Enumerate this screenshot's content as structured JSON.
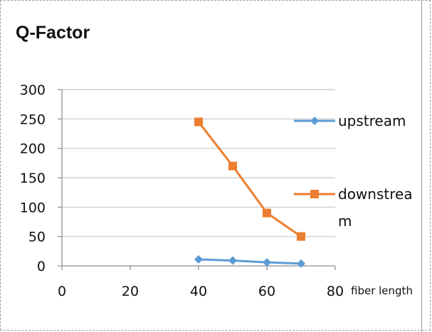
{
  "chart_data": {
    "type": "line",
    "title": "Q-Factor",
    "xlabel": "fiber length",
    "ylabel": "",
    "xlim": [
      0,
      80
    ],
    "ylim": [
      0,
      300
    ],
    "x_ticks": [
      "0",
      "20",
      "40",
      "60",
      "80"
    ],
    "y_ticks": [
      "0",
      "50",
      "100",
      "150",
      "200",
      "250",
      "300"
    ],
    "grid": true,
    "legend": "right",
    "series": [
      {
        "name": "upstream",
        "color": "#5b9bd5",
        "marker": "diamond",
        "x": [
          40,
          50,
          60,
          70
        ],
        "y": [
          11,
          9,
          6,
          4
        ]
      },
      {
        "name": "downstream",
        "name_lines": [
          "downstrea",
          "m"
        ],
        "color": "#ed7d31",
        "marker": "square",
        "x": [
          40,
          50,
          60,
          70
        ],
        "y": [
          245,
          170,
          90,
          50
        ]
      }
    ]
  }
}
